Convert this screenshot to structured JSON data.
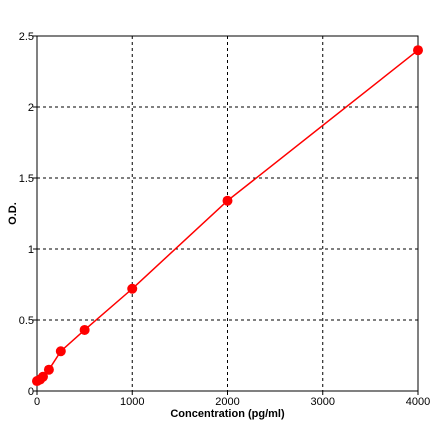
{
  "chart_data": {
    "type": "line",
    "xlabel": "Concentration (pg/ml)",
    "ylabel": "O.D.",
    "xlim": [
      0,
      4000
    ],
    "ylim": [
      0,
      2.5
    ],
    "x_ticks": [
      0,
      1000,
      2000,
      3000,
      4000
    ],
    "y_ticks": [
      0,
      0.5,
      1,
      1.5,
      2,
      2.5
    ],
    "x_tick_labels": [
      "0",
      "1000",
      "2000",
      "3000",
      "4000"
    ],
    "y_tick_labels": [
      "0",
      "0.5",
      "1",
      "1.5",
      "2",
      "2.5"
    ],
    "grid": true,
    "series": [
      {
        "color": "#ff0000",
        "points": [
          {
            "x": 0,
            "y": 0.07
          },
          {
            "x": 31.25,
            "y": 0.08
          },
          {
            "x": 62.5,
            "y": 0.1
          },
          {
            "x": 125,
            "y": 0.15
          },
          {
            "x": 250,
            "y": 0.28
          },
          {
            "x": 500,
            "y": 0.43
          },
          {
            "x": 1000,
            "y": 0.72
          },
          {
            "x": 2000,
            "y": 1.34
          },
          {
            "x": 4000,
            "y": 2.4
          }
        ]
      }
    ]
  }
}
